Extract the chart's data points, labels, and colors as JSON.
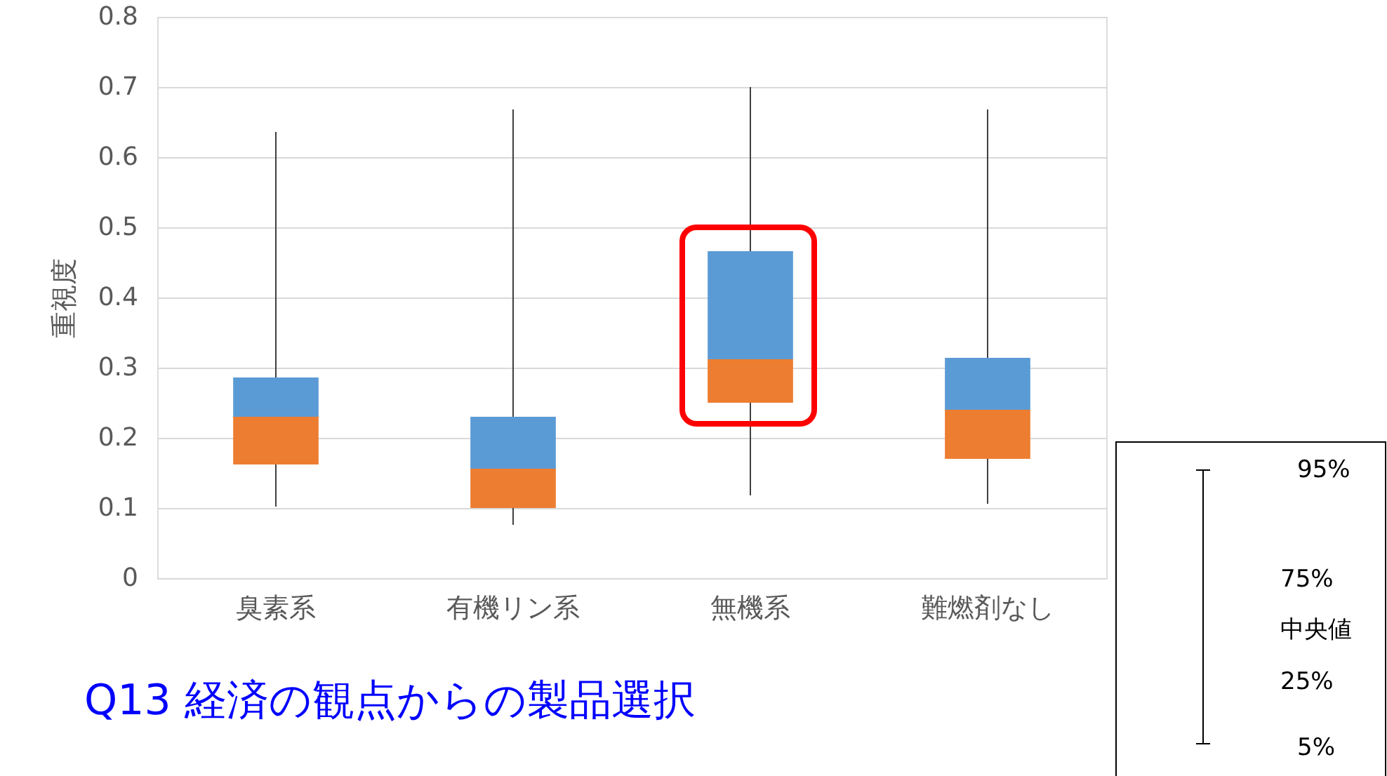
{
  "chart_data": {
    "type": "box",
    "ylabel": "重視度",
    "categories": [
      "臭素系",
      "有機リン系",
      "無機系",
      "難燃剤なし"
    ],
    "series": [
      {
        "color": "#5b9bd5",
        "colors": [
          "#ed7d31",
          "#ed7d31",
          "#ed7d31",
          "#ed7d31"
        ],
        "boxes": [
          {
            "low": 0.102,
            "q1": 0.162,
            "median": 0.23,
            "q3": 0.286,
            "high": 0.636
          },
          {
            "low": 0.076,
            "q1": 0.1,
            "median": 0.156,
            "q3": 0.23,
            "high": 0.668
          },
          {
            "low": 0.118,
            "q1": 0.25,
            "median": 0.312,
            "q3": 0.466,
            "high": 0.7
          },
          {
            "low": 0.106,
            "q1": 0.17,
            "median": 0.24,
            "q3": 0.314,
            "high": 0.668
          }
        ]
      }
    ],
    "ylim": [
      0,
      0.8
    ],
    "yticks": [
      {
        "value": 0,
        "label": "0"
      },
      0.1,
      0.2,
      0.3,
      0.4,
      0.5,
      0.6,
      0.7,
      0.8
    ],
    "grid": "y",
    "annotations": [
      {
        "text": "Q13  経済の観点からの製品選択"
      },
      {
        "text": "95%"
      },
      {
        "text": "75%"
      },
      {
        "text": "中央値"
      },
      {
        "text": "25%"
      },
      {
        "text": "5%"
      }
    ]
  }
}
